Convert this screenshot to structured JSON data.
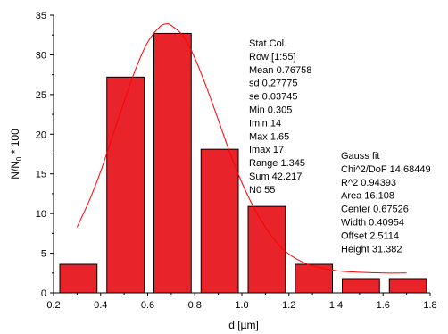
{
  "chart_data": {
    "type": "bar",
    "title": "",
    "xlabel": "d   [µm]",
    "ylabel": "N/N₀ * 100",
    "xlim": [
      0.2,
      1.8
    ],
    "ylim": [
      0,
      35
    ],
    "x_ticks": [
      "0.2",
      "0.4",
      "0.6",
      "0.8",
      "1.0",
      "1.2",
      "1.4",
      "1.6",
      "1.8"
    ],
    "y_ticks": [
      "0",
      "5",
      "10",
      "15",
      "20",
      "25",
      "30",
      "35"
    ],
    "bar_color": "#e8242a",
    "fit_color": "#ff0000",
    "bars": [
      {
        "x0": 0.2,
        "x1": 0.4,
        "value": 3.6
      },
      {
        "x0": 0.4,
        "x1": 0.6,
        "value": 27.2
      },
      {
        "x0": 0.6,
        "x1": 0.8,
        "value": 32.7
      },
      {
        "x0": 0.8,
        "x1": 1.0,
        "value": 18.1
      },
      {
        "x0": 1.0,
        "x1": 1.2,
        "value": 10.9
      },
      {
        "x0": 1.2,
        "x1": 1.4,
        "value": 3.6
      },
      {
        "x0": 1.4,
        "x1": 1.6,
        "value": 1.8
      },
      {
        "x0": 1.6,
        "x1": 1.8,
        "value": 1.8
      }
    ],
    "gauss_fit_curve": {
      "x": [
        0.3,
        0.35,
        0.4,
        0.45,
        0.5,
        0.55,
        0.6,
        0.65,
        0.68,
        0.7,
        0.75,
        0.8,
        0.85,
        0.9,
        0.95,
        1.0,
        1.05,
        1.1,
        1.15,
        1.2,
        1.25,
        1.3,
        1.4,
        1.5,
        1.6,
        1.7
      ],
      "y": [
        8.3,
        11.5,
        15.3,
        19.7,
        24.1,
        28.3,
        31.6,
        33.5,
        33.9,
        33.7,
        32.4,
        29.6,
        25.9,
        21.8,
        17.6,
        13.9,
        10.8,
        8.3,
        6.3,
        4.9,
        4.0,
        3.4,
        2.8,
        2.6,
        2.5,
        2.5
      ]
    },
    "annotations": {
      "stat_col": [
        "Stat.Col.",
        "Row [1:55]",
        "Mean 0.76758",
        "sd 0.27775",
        "se 0.03745",
        "Min 0.305",
        "Imin 14",
        "Max 1.65",
        "Imax 17",
        "Range 1.345",
        "Sum 42.217",
        "N0 55"
      ],
      "gauss_fit": [
        "Gauss fit",
        "Chi^2/DoF 14.68449",
        "R^2    0.94393",
        "Area 16.108",
        "Center 0.67526",
        "Width 0.40954",
        "Offset 2.5114",
        "Height 31.382"
      ]
    }
  }
}
